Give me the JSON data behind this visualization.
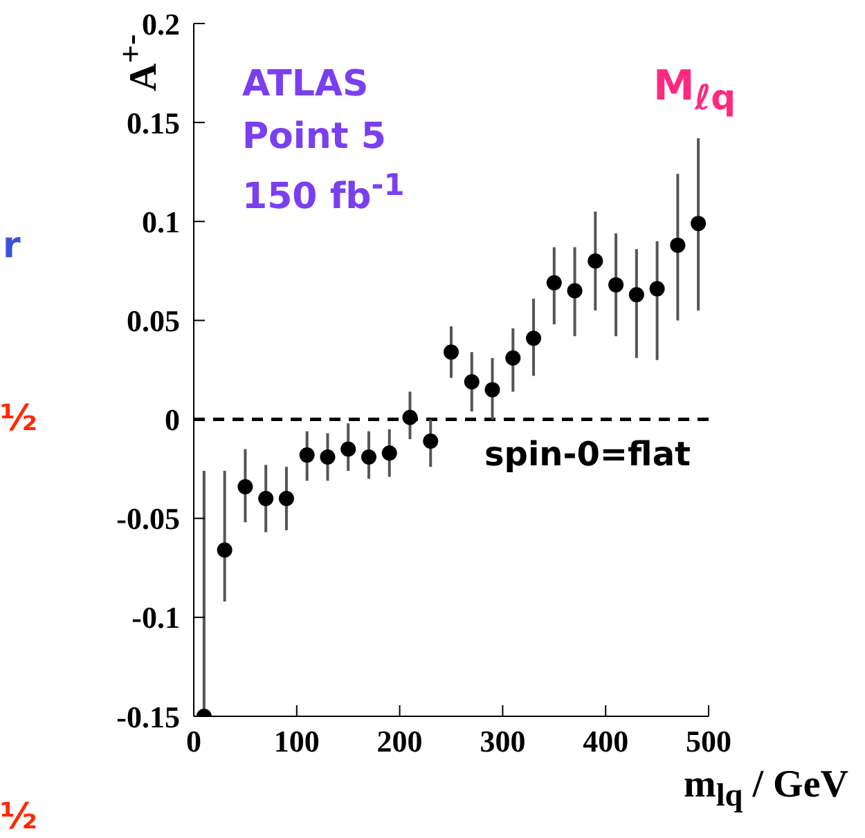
{
  "chart_data": {
    "type": "scatter",
    "xlabel": "m$_{lq}$ / GeV",
    "ylabel": "A$^{+-}$",
    "x": [
      10,
      30,
      50,
      70,
      90,
      110,
      130,
      150,
      170,
      190,
      210,
      230,
      250,
      270,
      290,
      310,
      330,
      350,
      370,
      390,
      410,
      430,
      450,
      470,
      490
    ],
    "values": [
      -0.15,
      -0.066,
      -0.034,
      -0.04,
      -0.04,
      -0.018,
      -0.019,
      -0.015,
      -0.019,
      -0.017,
      0.001,
      -0.011,
      0.034,
      0.019,
      0.015,
      0.031,
      0.041,
      0.069,
      0.065,
      0.08,
      0.068,
      0.063,
      0.066,
      0.088,
      0.099
    ],
    "errors": [
      [
        -0.15,
        -0.026
      ],
      [
        -0.092,
        -0.026
      ],
      [
        -0.052,
        -0.015
      ],
      [
        -0.057,
        -0.023
      ],
      [
        -0.056,
        -0.024
      ],
      [
        -0.031,
        -0.006
      ],
      [
        -0.031,
        -0.007
      ],
      [
        -0.026,
        -0.002
      ],
      [
        -0.03,
        -0.006
      ],
      [
        -0.029,
        -0.005
      ],
      [
        -0.01,
        0.014
      ],
      [
        -0.024,
        0.0
      ],
      [
        0.021,
        0.047
      ],
      [
        0.004,
        0.034
      ],
      [
        0.0,
        0.031
      ],
      [
        0.014,
        0.046
      ],
      [
        0.022,
        0.061
      ],
      [
        0.048,
        0.087
      ],
      [
        0.042,
        0.087
      ],
      [
        0.055,
        0.105
      ],
      [
        0.042,
        0.094
      ],
      [
        0.031,
        0.086
      ],
      [
        0.03,
        0.09
      ],
      [
        0.05,
        0.124
      ],
      [
        0.055,
        0.142
      ]
    ],
    "color": "#000000",
    "marker": "circle",
    "xlim": [
      0,
      500
    ],
    "xticks": [
      0,
      100,
      200,
      300,
      400,
      500
    ],
    "ylim": [
      -0.15,
      0.2
    ],
    "yticks": [
      -0.15,
      -0.1,
      -0.05,
      0,
      0.05,
      0.1,
      0.15,
      0.2
    ],
    "ref_lines": [
      {
        "axis": "y",
        "value": 0,
        "label": "spin-0=flat",
        "color": "#000000",
        "line_style": "dashed"
      }
    ],
    "annotations": [
      "ATLAS",
      "Point 5",
      "150 fb$^{-1}$",
      "M$_{ℓq}$",
      "r",
      "½",
      "½"
    ]
  }
}
